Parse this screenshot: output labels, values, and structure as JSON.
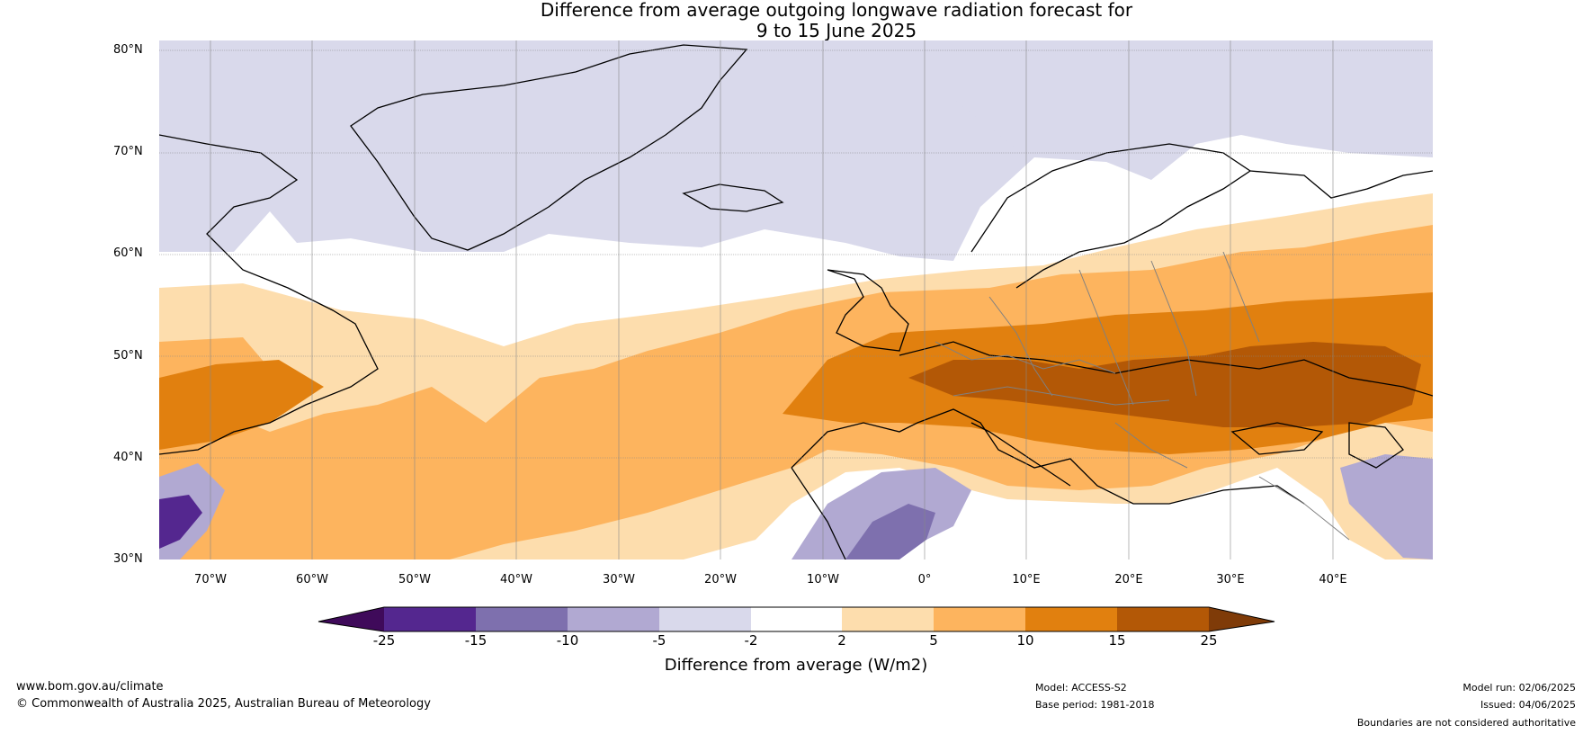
{
  "title": {
    "line1": "Difference from average outgoing longwave radiation forecast for",
    "line2": "9 to 15 June 2025"
  },
  "map": {
    "latitude_labels": [
      "80°N",
      "70°N",
      "60°N",
      "50°N",
      "40°N",
      "30°N"
    ],
    "longitude_labels": [
      "70°W",
      "60°W",
      "50°W",
      "40°W",
      "30°W",
      "20°W",
      "10°W",
      "0°",
      "10°E",
      "20°E",
      "30°E",
      "40°E"
    ]
  },
  "colorbar": {
    "ticks": [
      "-25",
      "-15",
      "-10",
      "-5",
      "-2",
      "2",
      "5",
      "10",
      "15",
      "25"
    ],
    "colors": [
      "#3f0a5a",
      "#54278f",
      "#7e70ae",
      "#b1a9d2",
      "#d9d9eb",
      "#ffffff",
      "#fdddad",
      "#fdb45e",
      "#e1800f",
      "#b35806",
      "#7f3b08"
    ],
    "label": "Difference from average (W/m2)"
  },
  "footer": {
    "website": "www.bom.gov.au/climate",
    "copyright": "© Commonwealth of Australia 2025, Australian Bureau of Meteorology",
    "model": "Model: ACCESS-S2",
    "base_period": "Base period: 1981-2018",
    "model_run": "Model run: 02/06/2025",
    "issued": "Issued: 04/06/2025",
    "disclaimer": "Boundaries are not considered authoritative"
  }
}
